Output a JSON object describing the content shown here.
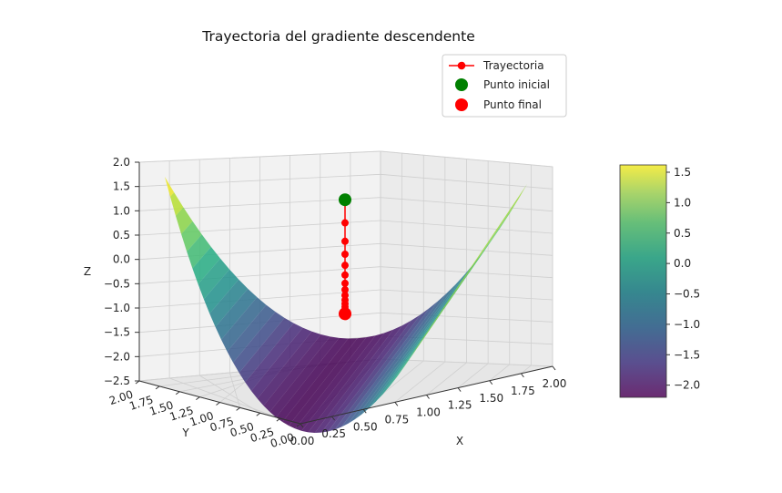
{
  "chart_data": {
    "type": "surface3d",
    "title": "Trayectoria del gradiente descendente",
    "xlabel": "X",
    "ylabel": "Y",
    "zlabel": "Z",
    "xlim": [
      0,
      2
    ],
    "ylim": [
      0,
      2
    ],
    "zlim": [
      -2.5,
      2.0
    ],
    "x_ticks": [
      "0.00",
      "0.25",
      "0.50",
      "0.75",
      "1.00",
      "1.25",
      "1.50",
      "1.75",
      "2.00"
    ],
    "y_ticks": [
      "0.00",
      "0.25",
      "0.50",
      "0.75",
      "1.00",
      "1.25",
      "1.50",
      "1.75",
      "2.00"
    ],
    "z_ticks": [
      "−2.5",
      "−2.0",
      "−1.5",
      "−1.0",
      "−0.5",
      "0.0",
      "0.5",
      "1.0",
      "1.5",
      "2.0"
    ],
    "grid": true,
    "colormap": "viridis",
    "colorbar": {
      "min": -2.2,
      "max": 1.62,
      "ticks": [
        "−2.0",
        "−1.5",
        "−1.0",
        "−0.5",
        "0.0",
        "0.5",
        "1.0",
        "1.5"
      ]
    },
    "legend": {
      "placement": "top-right",
      "entries": [
        {
          "label": "Trayectoria",
          "color": "#ff0000",
          "marker": "line-dot"
        },
        {
          "label": "Punto inicial",
          "color": "#008000",
          "marker": "dot"
        },
        {
          "label": "Punto final",
          "color": "#ff0000",
          "marker": "dot"
        }
      ]
    },
    "trajectory_z": [
      0.95,
      0.45,
      0.05,
      -0.23,
      -0.47,
      -0.68,
      -0.86,
      -1.0,
      -1.12,
      -1.22,
      -1.3,
      -1.37,
      -1.43,
      -1.48,
      -1.52
    ],
    "start_z": 0.95,
    "end_z": -1.52
  }
}
